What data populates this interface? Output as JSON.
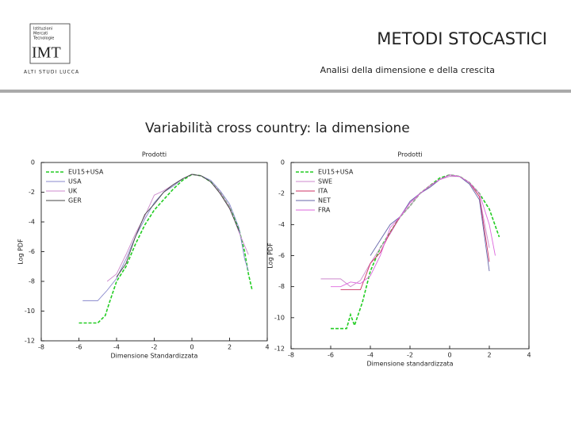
{
  "header": {
    "logo": {
      "lines": [
        "Istituzioni",
        "Mercati",
        "Tecnologie"
      ],
      "name": "IMT",
      "tagline": "ALTI STUDI LUCCA"
    },
    "title": "METODI STOCASTICI",
    "subtitle": "Analisi della dimensione e della crescita"
  },
  "heading": "Variabilità cross country: la dimensione",
  "chart_data": [
    {
      "type": "line",
      "title": "Prodotti",
      "x_label": "Dimensione Standardizzata",
      "y_label": "Log PDF",
      "xlim": [
        -8,
        4
      ],
      "xticks": [
        -8,
        -6,
        -4,
        -2,
        0,
        2,
        4
      ],
      "ylim": [
        -12,
        0
      ],
      "yticks": [
        0,
        -2,
        -4,
        -6,
        -8,
        -10,
        -12
      ],
      "legend": "upper left",
      "series": [
        {
          "name": "EU15+USA",
          "color": "#22cc22",
          "dashed": true,
          "x": [
            -6,
            -5.5,
            -5,
            -4.6,
            -4.4,
            -4,
            -3.5,
            -3,
            -2.5,
            -2,
            -1.5,
            -1,
            -0.5,
            0,
            0.5,
            1,
            1.5,
            2,
            2.5,
            2.8,
            3,
            3.2
          ],
          "values": [
            -10.8,
            -10.8,
            -10.8,
            -10.3,
            -9.5,
            -8,
            -7,
            -5.5,
            -4.2,
            -3.2,
            -2.5,
            -1.8,
            -1.2,
            -0.8,
            -0.9,
            -1.3,
            -2,
            -3,
            -4.5,
            -6,
            -7.5,
            -8.6
          ]
        },
        {
          "name": "USA",
          "color": "#8888cc",
          "x": [
            -5.8,
            -5.4,
            -5,
            -4.5,
            -4,
            -3.5,
            -3,
            -2.5,
            -2,
            -1.5,
            -1,
            -0.5,
            0,
            0.5,
            1,
            1.5,
            2,
            2.5,
            2.8,
            3
          ],
          "values": [
            -9.3,
            -9.3,
            -9.3,
            -8.6,
            -7.8,
            -6.5,
            -5,
            -3.8,
            -2.7,
            -2,
            -1.6,
            -1.1,
            -0.8,
            -0.9,
            -1.2,
            -1.9,
            -2.8,
            -4.4,
            -6.5,
            -7.3
          ]
        },
        {
          "name": "UK",
          "color": "#cc88cc",
          "x": [
            -4.5,
            -4,
            -3.5,
            -3,
            -2.5,
            -2,
            -1.5,
            -1,
            -0.5,
            0,
            0.5,
            1,
            1.5,
            2,
            2.5,
            3
          ],
          "values": [
            -8,
            -7.5,
            -6.2,
            -4.8,
            -3.6,
            -2.2,
            -1.9,
            -1.5,
            -1.1,
            -0.8,
            -0.9,
            -1.3,
            -2,
            -3,
            -4.7,
            -6.2
          ]
        },
        {
          "name": "GER",
          "color": "#444444",
          "x": [
            -4,
            -3.5,
            -3,
            -2.5,
            -2,
            -1.5,
            -1,
            -0.5,
            0,
            0.5,
            1,
            1.5,
            2,
            2.5
          ],
          "values": [
            -7.7,
            -6.8,
            -5,
            -3.5,
            -2.8,
            -2,
            -1.5,
            -1.1,
            -0.8,
            -0.9,
            -1.3,
            -2.1,
            -3.1,
            -4.6
          ]
        }
      ]
    },
    {
      "type": "line",
      "title": "Prodotti",
      "x_label": "Dimensione standardizzata",
      "y_label": "Log PDF",
      "xlim": [
        -8,
        4
      ],
      "xticks": [
        -8,
        -6,
        -4,
        -2,
        0,
        2,
        4
      ],
      "ylim": [
        -12,
        0
      ],
      "yticks": [
        0,
        -2,
        -4,
        -6,
        -8,
        -10,
        -12
      ],
      "legend": "upper left",
      "series": [
        {
          "name": "EU15+USA",
          "color": "#22cc22",
          "dashed": true,
          "x": [
            -6,
            -5.6,
            -5.2,
            -5,
            -4.8,
            -4.4,
            -4,
            -3.5,
            -3,
            -2.5,
            -2,
            -1.5,
            -1,
            -0.5,
            0,
            0.5,
            1,
            1.5,
            2,
            2.5
          ],
          "values": [
            -10.7,
            -10.7,
            -10.7,
            -9.8,
            -10.5,
            -9,
            -7,
            -5.5,
            -4.5,
            -3.5,
            -2.8,
            -2,
            -1.5,
            -1,
            -0.8,
            -0.9,
            -1.3,
            -2,
            -3,
            -4.8
          ]
        },
        {
          "name": "SWE",
          "color": "#cc88cc",
          "x": [
            -6.5,
            -5.5,
            -5,
            -4.5,
            -4,
            -3.5,
            -3,
            -2.5,
            -2,
            -1.5,
            -1,
            -0.5,
            0,
            0.5,
            1,
            1.5,
            2
          ],
          "values": [
            -7.5,
            -7.5,
            -8,
            -7.6,
            -6.5,
            -5.5,
            -4.6,
            -3.5,
            -2.8,
            -2,
            -1.6,
            -1.1,
            -0.9,
            -0.9,
            -1.3,
            -2.2,
            -5.5
          ]
        },
        {
          "name": "ITA",
          "color": "#cc3366",
          "x": [
            -5.5,
            -5,
            -4.5,
            -4,
            -3.5,
            -3,
            -2.5,
            -2,
            -1.5,
            -1,
            -0.5,
            0,
            0.5,
            1,
            1.5,
            2
          ],
          "values": [
            -8.2,
            -8.2,
            -8.2,
            -6.5,
            -5.8,
            -4.5,
            -3.5,
            -2.6,
            -2,
            -1.5,
            -1.1,
            -0.8,
            -0.9,
            -1.3,
            -2.2,
            -6.4
          ]
        },
        {
          "name": "NET",
          "color": "#6666aa",
          "x": [
            -4,
            -3.5,
            -3,
            -2.5,
            -2,
            -1.5,
            -1,
            -0.5,
            0,
            0.5,
            1,
            1.5,
            2
          ],
          "values": [
            -6,
            -5,
            -4,
            -3.5,
            -2.5,
            -2,
            -1.6,
            -1.1,
            -0.8,
            -0.9,
            -1.4,
            -2.4,
            -7
          ]
        },
        {
          "name": "FRA",
          "color": "#dd66dd",
          "x": [
            -6,
            -5.5,
            -5,
            -4.5,
            -4,
            -3.5,
            -3,
            -2.5,
            -2,
            -1.5,
            -1,
            -0.5,
            0,
            0.5,
            1,
            1.5,
            2,
            2.3
          ],
          "values": [
            -8,
            -8,
            -7.7,
            -7.8,
            -7.3,
            -6,
            -4.2,
            -3.5,
            -2.6,
            -2,
            -1.5,
            -1.1,
            -0.8,
            -0.9,
            -1.3,
            -2,
            -4,
            -6
          ]
        }
      ]
    }
  ]
}
